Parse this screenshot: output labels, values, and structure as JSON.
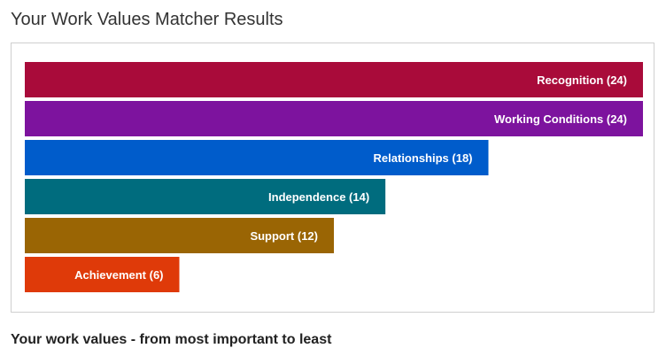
{
  "page": {
    "title": "Your Work Values Matcher Results",
    "subheading": "Your work values - from most important to least"
  },
  "chart_data": {
    "type": "bar",
    "orientation": "horizontal",
    "categories": [
      "Recognition",
      "Working Conditions",
      "Relationships",
      "Independence",
      "Support",
      "Achievement"
    ],
    "values": [
      24,
      24,
      18,
      14,
      12,
      6
    ],
    "labels": [
      "Recognition (24)",
      "Working Conditions (24)",
      "Relationships (18)",
      "Independence (14)",
      "Support (12)",
      "Achievement (6)"
    ],
    "colors": [
      "#a90b3a",
      "#7d139e",
      "#005ccb",
      "#006c7e",
      "#9a6504",
      "#df3a09"
    ],
    "xlim": [
      0,
      24
    ],
    "grid": false,
    "legend": "none"
  }
}
